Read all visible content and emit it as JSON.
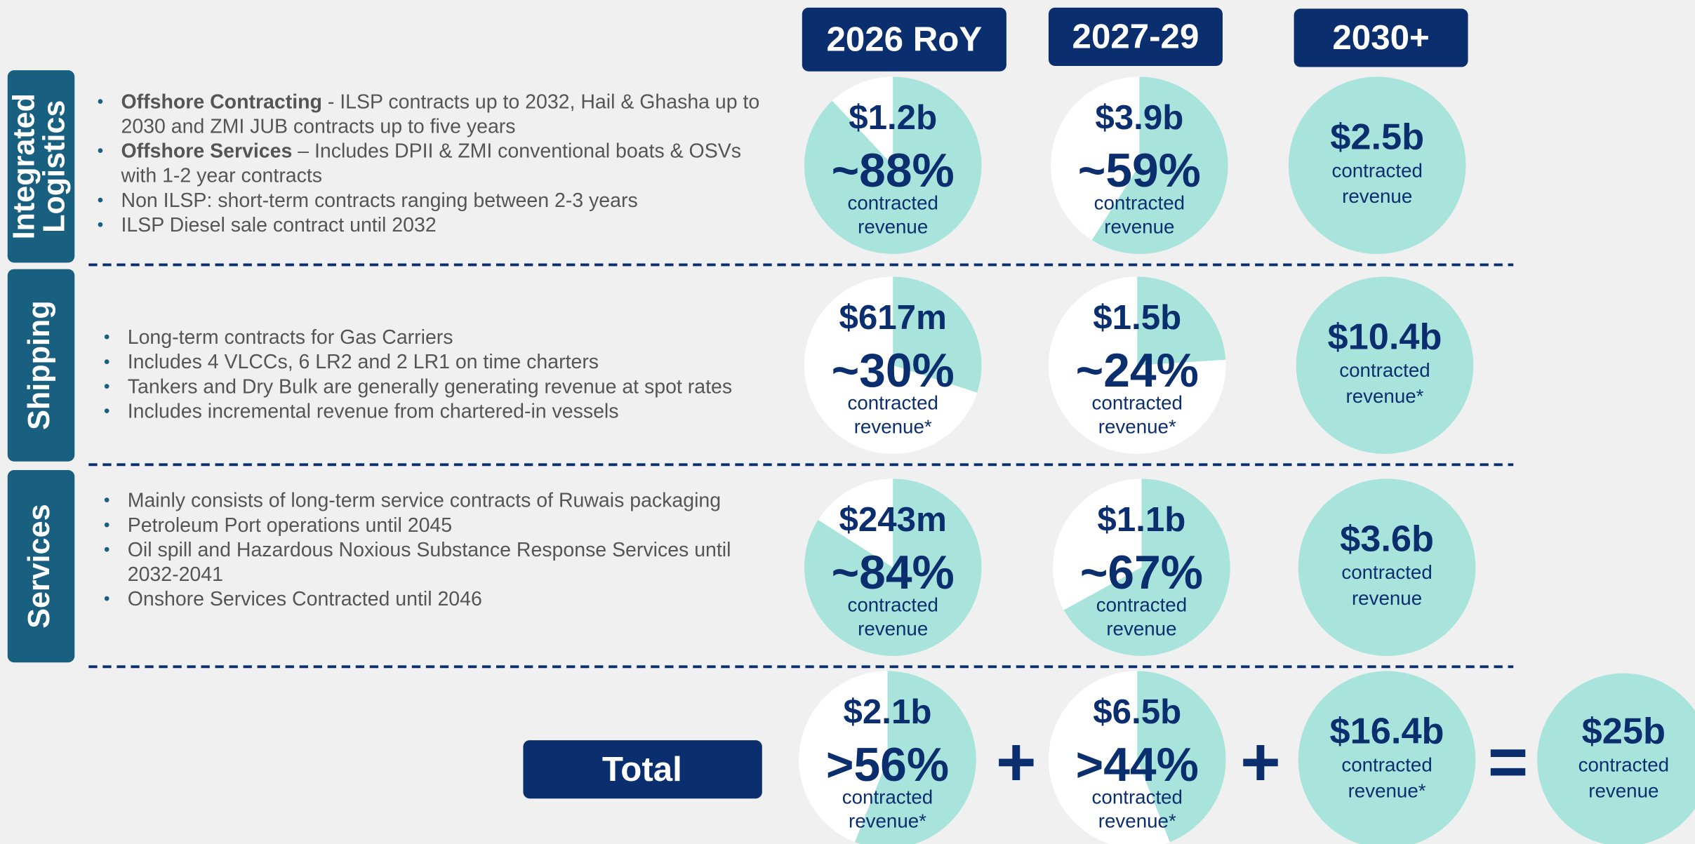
{
  "headers": [
    "2026 RoY",
    "2027-29",
    "2030+"
  ],
  "rows": [
    {
      "label": [
        "Integrated",
        "Logistics"
      ],
      "bullets": [
        {
          "bold": "Offshore Contracting",
          "lines": [
            " - ILSP contracts up to 2032, Hail & Ghasha up to",
            "2030 and ZMI JUB contracts up to five years"
          ]
        },
        {
          "bold": "Offshore Services",
          "lines": [
            " – Includes DPII & ZMI conventional boats & OSVs",
            "with 1-2 year contracts"
          ]
        },
        {
          "lines": [
            "Non ILSP: short-term contracts ranging between 2-3 years"
          ]
        },
        {
          "lines": [
            "ILSP Diesel sale contract until 2032"
          ]
        }
      ],
      "cells": [
        {
          "amount": "$1.2b",
          "pct": 88,
          "pct_label": "~88%",
          "note": [
            "contracted",
            "revenue"
          ]
        },
        {
          "amount": "$3.9b",
          "pct": 59,
          "pct_label": "~59%",
          "note": [
            "contracted",
            "revenue"
          ]
        },
        {
          "amount": "$2.5b",
          "note": [
            "contracted",
            "revenue"
          ]
        }
      ]
    },
    {
      "label": [
        "Shipping"
      ],
      "bullets": [
        {
          "lines": [
            "Long-term contracts for Gas Carriers"
          ]
        },
        {
          "lines": [
            "Includes 4 VLCCs, 6 LR2 and 2 LR1 on time charters"
          ]
        },
        {
          "lines": [
            "Tankers and Dry Bulk are generally generating revenue at spot rates"
          ]
        },
        {
          "lines": [
            "Includes incremental revenue from chartered-in vessels"
          ]
        }
      ],
      "cells": [
        {
          "amount": "$617m",
          "pct": 30,
          "pct_label": "~30%",
          "note": [
            "contracted",
            "revenue*"
          ]
        },
        {
          "amount": "$1.5b",
          "pct": 24,
          "pct_label": "~24%",
          "note": [
            "contracted",
            "revenue*"
          ]
        },
        {
          "amount": "$10.4b",
          "note": [
            "contracted",
            "revenue*"
          ]
        }
      ]
    },
    {
      "label": [
        "Services"
      ],
      "bullets": [
        {
          "lines": [
            "Mainly consists of long-term service contracts of Ruwais packaging"
          ]
        },
        {
          "lines": [
            "Petroleum Port operations until 2045"
          ]
        },
        {
          "lines": [
            "Oil spill and Hazardous Noxious Substance Response Services until",
            "2032-2041"
          ]
        },
        {
          "lines": [
            "Onshore Services Contracted until 2046"
          ]
        }
      ],
      "cells": [
        {
          "amount": "$243m",
          "pct": 84,
          "pct_label": "~84%",
          "note": [
            "contracted",
            "revenue"
          ]
        },
        {
          "amount": "$1.1b",
          "pct": 67,
          "pct_label": "~67%",
          "note": [
            "contracted",
            "revenue"
          ]
        },
        {
          "amount": "$3.6b",
          "note": [
            "contracted",
            "revenue"
          ]
        }
      ]
    }
  ],
  "total": {
    "label": "Total",
    "cells": [
      {
        "amount": "$2.1b",
        "pct": 56,
        "pct_label": ">56%",
        "note": [
          "contracted",
          "revenue*"
        ]
      },
      {
        "amount": "$6.5b",
        "pct": 44,
        "pct_label": ">44%",
        "note": [
          "contracted",
          "revenue*"
        ]
      },
      {
        "amount": "$16.4b",
        "note": [
          "contracted",
          "revenue*"
        ]
      },
      {
        "amount": "$25b",
        "note": [
          "contracted",
          "revenue"
        ]
      }
    ],
    "operators": [
      "+",
      "+",
      "="
    ]
  }
}
